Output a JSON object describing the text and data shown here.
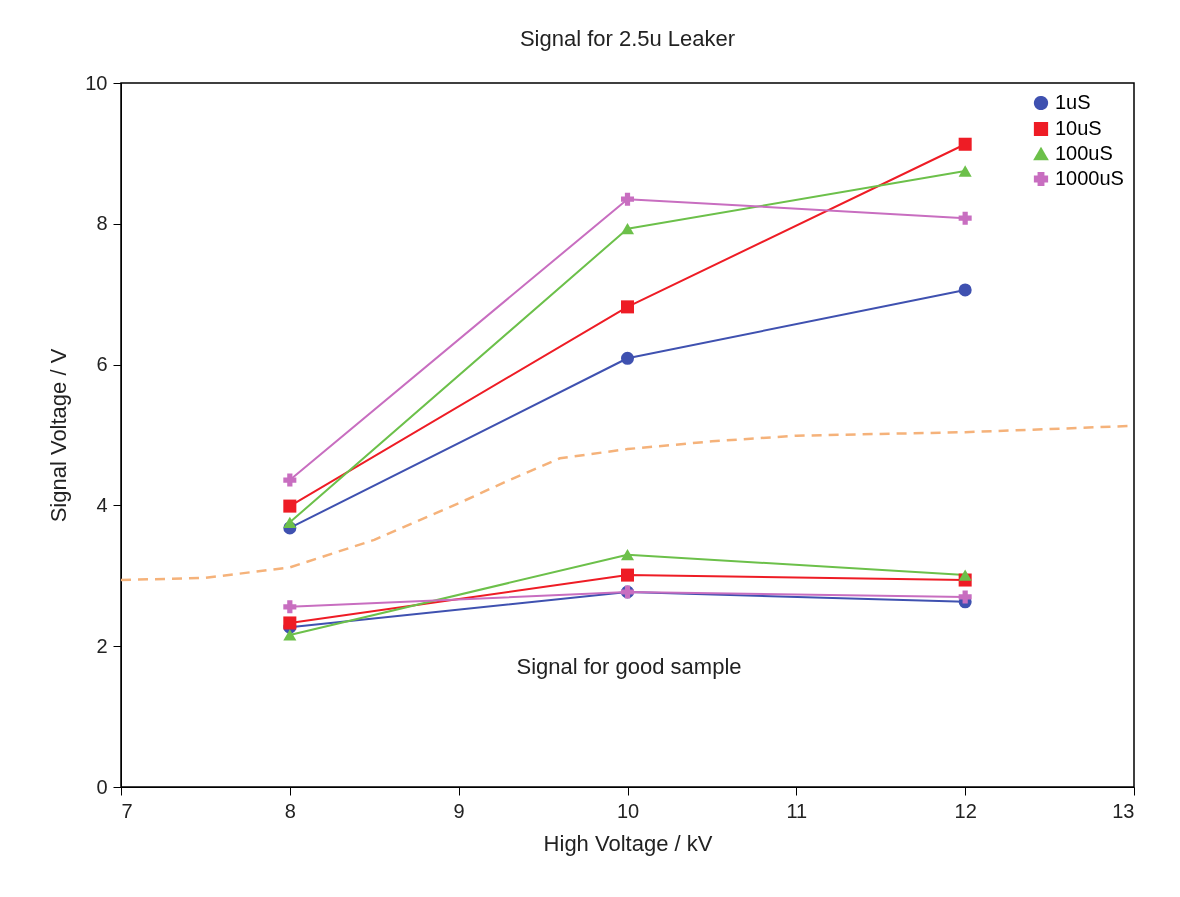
{
  "chart_data": {
    "type": "line",
    "title": "Signal for 2.5u Leaker",
    "xlabel": "High Voltage / kV",
    "ylabel": "Signal Voltage / V",
    "xlim": [
      7,
      13
    ],
    "xticks": [
      7,
      8,
      9,
      10,
      11,
      12,
      13
    ],
    "ylim": [
      0,
      10
    ],
    "yticks": [
      0,
      2,
      4,
      6,
      8,
      10
    ],
    "grid": false,
    "legend": "top right",
    "series": [
      {
        "name": "1uS",
        "color": "#3f51b0",
        "marker": "circle",
        "x": [
          8,
          10,
          12
        ],
        "values": [
          3.68,
          6.09,
          7.06
        ]
      },
      {
        "name": "10uS",
        "color": "#ee1c25",
        "marker": "square",
        "x": [
          8,
          10,
          12
        ],
        "values": [
          3.99,
          6.82,
          9.13
        ]
      },
      {
        "name": "100uS",
        "color": "#6cc04a",
        "marker": "triangle",
        "x": [
          8,
          10,
          12
        ],
        "values": [
          3.76,
          7.93,
          8.75
        ]
      },
      {
        "name": "1000uS",
        "color": "#c86ec0",
        "marker": "cross",
        "x": [
          8,
          10,
          12
        ],
        "values": [
          4.36,
          8.35,
          8.08
        ]
      },
      {
        "color": "#3f51b0",
        "marker": "circle",
        "x": [
          8,
          10,
          12
        ],
        "values": [
          2.27,
          2.77,
          2.63
        ]
      },
      {
        "color": "#ee1c25",
        "marker": "square",
        "x": [
          8,
          10,
          12
        ],
        "values": [
          2.33,
          3.01,
          2.94
        ]
      },
      {
        "color": "#6cc04a",
        "marker": "triangle",
        "x": [
          8,
          10,
          12
        ],
        "values": [
          2.16,
          3.3,
          3.01
        ]
      },
      {
        "color": "#c86ec0",
        "marker": "cross",
        "x": [
          8,
          10,
          12
        ],
        "values": [
          2.56,
          2.77,
          2.7
        ]
      },
      {
        "color": "#f5b27a",
        "marker": "none",
        "line_style": "dashed",
        "x": [
          7,
          7.5,
          8,
          8.5,
          9,
          9.3,
          9.6,
          10,
          10.5,
          11,
          12,
          13
        ],
        "values": [
          2.94,
          2.97,
          3.12,
          3.51,
          4.03,
          4.36,
          4.67,
          4.8,
          4.91,
          4.99,
          5.04,
          5.13
        ]
      }
    ],
    "annotations": [
      "Signal for good sample"
    ]
  }
}
